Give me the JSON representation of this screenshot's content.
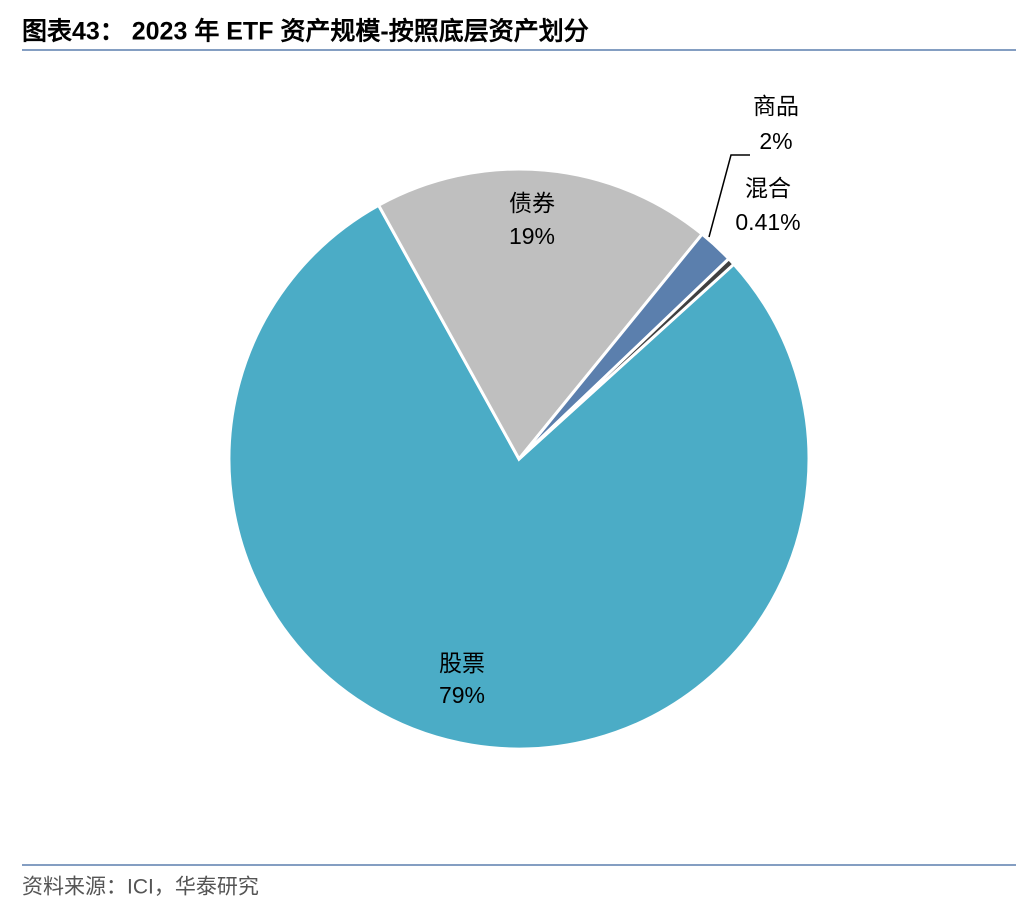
{
  "chart_data": {
    "type": "pie",
    "title": "图表43： 2023 年 ETF 资产规模-按照底层资产划分",
    "categories": [
      "股票",
      "债券",
      "商品",
      "混合"
    ],
    "values": [
      79,
      19,
      2,
      0.41
    ],
    "value_labels": [
      "79%",
      "19%",
      "2%",
      "0.41%"
    ],
    "colors": [
      "#4bacc6",
      "#bfbfbf",
      "#5b7fad",
      "#404040"
    ],
    "source": "资料来源：ICI，华泰研究"
  }
}
